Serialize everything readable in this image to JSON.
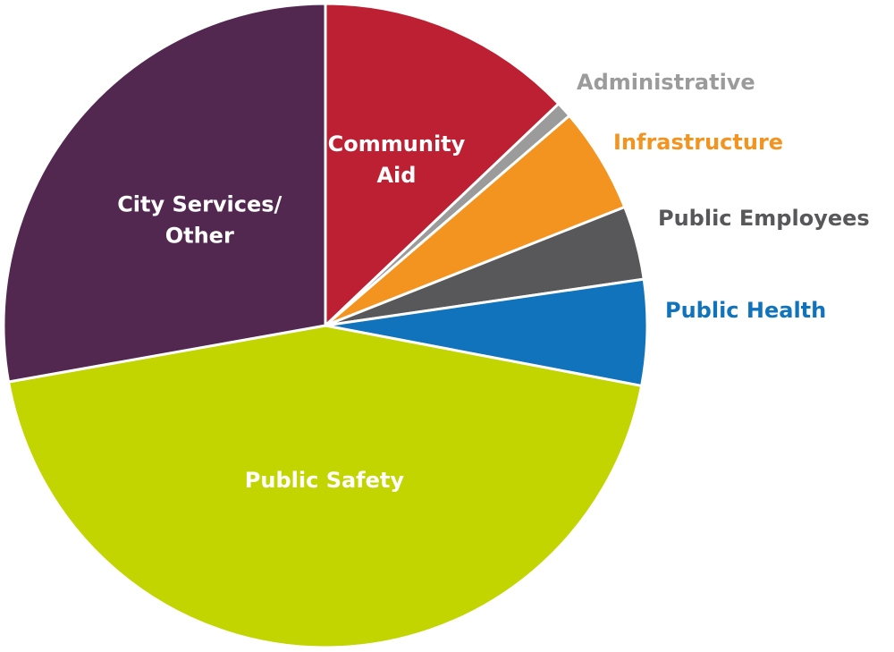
{
  "chart_data": {
    "type": "pie",
    "title": "",
    "slices": [
      {
        "label": "Community Aid",
        "lines": [
          "Community",
          "Aid"
        ],
        "value": 12.9,
        "color": "#bc2032",
        "label_position": "inside",
        "label_color": "#ffffff"
      },
      {
        "label": "Administrative",
        "lines": [
          "Administrative"
        ],
        "value": 0.8,
        "color": "#9b9b9b",
        "label_position": "outside",
        "label_color": "#9b9b9b"
      },
      {
        "label": "Infrastructure",
        "lines": [
          "Infrastructure"
        ],
        "value": 5.3,
        "color": "#f39420",
        "label_position": "outside",
        "label_color": "#f39420"
      },
      {
        "label": "Public Employees",
        "lines": [
          "Public Employees"
        ],
        "value": 3.7,
        "color": "#58585a",
        "label_position": "outside",
        "label_color": "#58585a"
      },
      {
        "label": "Public Health",
        "lines": [
          "Public Health"
        ],
        "value": 5.3,
        "color": "#1173bc",
        "label_position": "outside",
        "label_color": "#1173bc"
      },
      {
        "label": "Public Safety",
        "lines": [
          "Public Safety"
        ],
        "value": 44.2,
        "color": "#c3d500",
        "label_position": "inside",
        "label_color": "#ffffff"
      },
      {
        "label": "City Services/ Other",
        "lines": [
          "City Services/",
          "Other"
        ],
        "value": 27.8,
        "color": "#522851",
        "label_position": "inside",
        "label_color": "#ffffff"
      }
    ],
    "start_angle_deg": 0,
    "direction": "clockwise",
    "legend": "none"
  }
}
